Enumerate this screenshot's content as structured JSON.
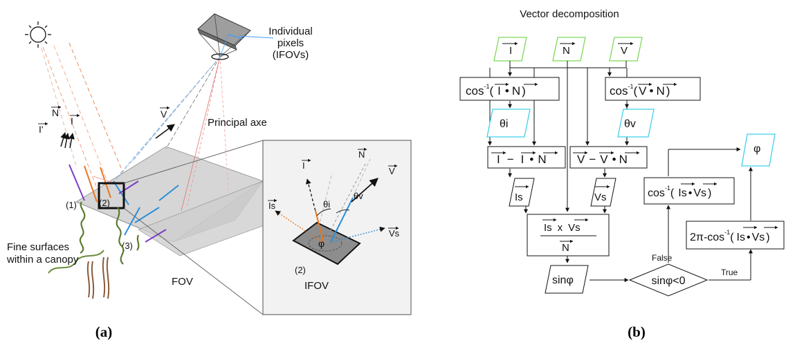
{
  "panel_a": {
    "caption": "(a)",
    "labels": {
      "pixels": [
        "Individual",
        "pixels",
        "(IFOVs)"
      ],
      "principal_axe": "Principal axe",
      "fine_surfaces": [
        "Fine surfaces",
        "within a canopy"
      ],
      "fov": "FOV",
      "ifov": "IFOV",
      "v": "V",
      "n": "N",
      "i": "I",
      "i_prime": "I'",
      "marker_1": "(1)",
      "marker_2": "(2)",
      "marker_3": "(3)"
    },
    "inset": {
      "i": "I",
      "n": "N",
      "v": "V",
      "is": "Is",
      "vs": "Vs",
      "theta_i": "θi",
      "theta_v": "θv",
      "phi": "φ",
      "marker_2": "(2)"
    }
  },
  "panel_b": {
    "caption": "(b)",
    "title": "Vector decomposition",
    "inputs": {
      "i": "I",
      "n": "N",
      "v": "V"
    },
    "cos_in": {
      "prefix": "cos",
      "sup": "-1",
      "open": "(",
      "a": "I",
      "dot": "•",
      "b": "N",
      "close": ")"
    },
    "cos_vn": {
      "prefix": "cos",
      "sup": "-1",
      "open": "(",
      "a": "V",
      "dot": "•",
      "b": "N",
      "close": ")"
    },
    "theta_i": "θi",
    "theta_v": "θv",
    "proj_i": {
      "a": "I",
      "minus": "−",
      "b": "I",
      "dot": "•",
      "c": "N"
    },
    "proj_v": {
      "a": "V",
      "minus": "−",
      "b": "V",
      "dot": "•",
      "c": "N"
    },
    "is": "Is",
    "vs": "Vs",
    "cross": {
      "a": "Is",
      "x": "x",
      "b": "Vs",
      "den": "N"
    },
    "sinphi": "sinφ",
    "decision": "sinφ<0",
    "false_label": "False",
    "true_label": "True",
    "cos_false": {
      "prefix": "cos",
      "sup": "-1",
      "open": "(",
      "a": "Is",
      "dot": "•",
      "b": "Vs",
      "close": ")"
    },
    "cos_true": {
      "pre": "2π-",
      "prefix": "cos",
      "sup": "-1",
      "open": "(",
      "a": "Is",
      "dot": "•",
      "b": "Vs",
      "close": ")"
    },
    "phi": "φ"
  },
  "colors": {
    "input_box": "#7ed957",
    "result_box": "#3fd0ea",
    "orange": "#e87722",
    "blue": "#2a8fd8",
    "purple": "#7a3cc8",
    "green_plant": "#5c7a2e",
    "brown": "#8a5a3a"
  }
}
